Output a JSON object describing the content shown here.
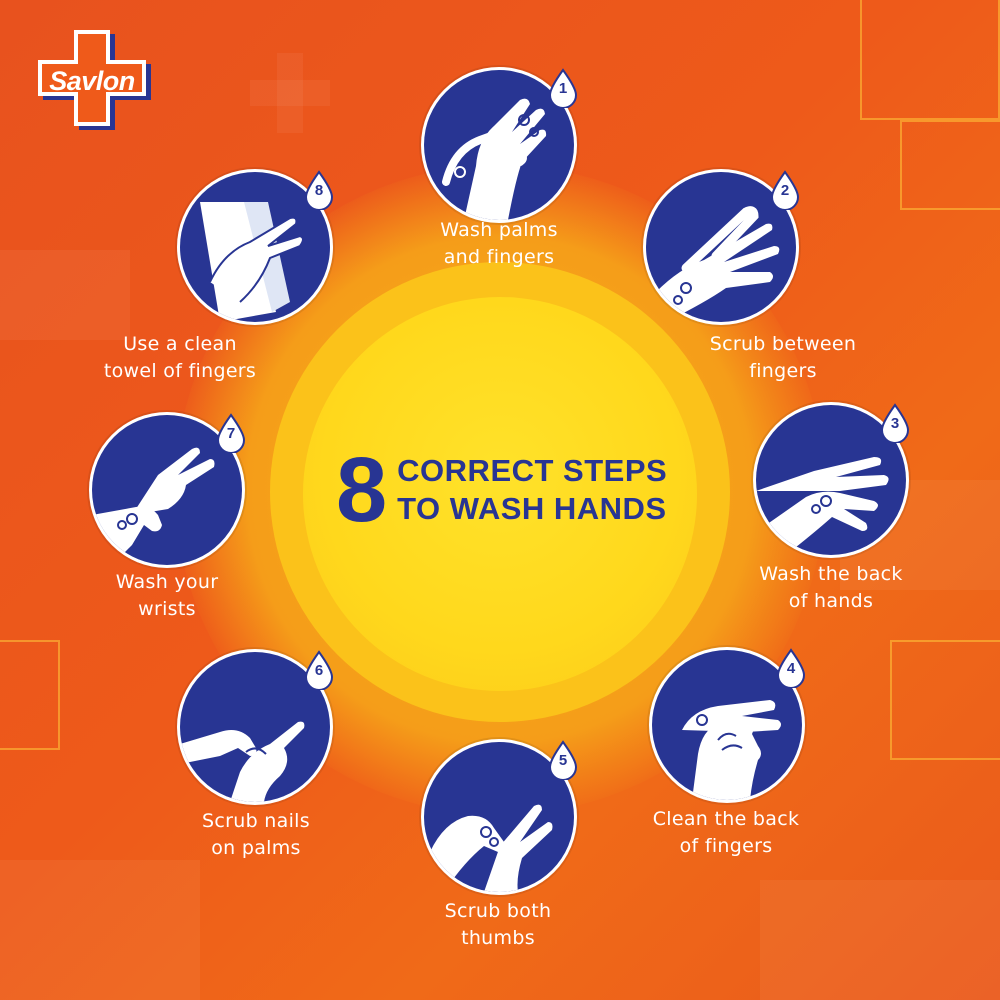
{
  "brand": {
    "name": "Savlon"
  },
  "headline": {
    "number": "8",
    "line1": "CORRECT STEPS",
    "line2": "TO WASH HANDS"
  },
  "colors": {
    "background": "#ee5a1a",
    "disc": "#283593",
    "sun": "#ffd81c",
    "headline_text": "#283593",
    "label_text": "#ffffff"
  },
  "steps": [
    {
      "number": "1",
      "label_line1": "Wash palms",
      "label_line2": "and fingers",
      "icon": "wash-palms-icon"
    },
    {
      "number": "2",
      "label_line1": "Scrub between",
      "label_line2": "fingers",
      "icon": "scrub-between-fingers-icon"
    },
    {
      "number": "3",
      "label_line1": "Wash the back",
      "label_line2": "of hands",
      "icon": "wash-back-of-hands-icon"
    },
    {
      "number": "4",
      "label_line1": "Clean the back",
      "label_line2": "of fingers",
      "icon": "clean-back-of-fingers-icon"
    },
    {
      "number": "5",
      "label_line1": "Scrub both",
      "label_line2": "thumbs",
      "icon": "scrub-thumbs-icon"
    },
    {
      "number": "6",
      "label_line1": "Scrub nails",
      "label_line2": "on palms",
      "icon": "scrub-nails-icon"
    },
    {
      "number": "7",
      "label_line1": "Wash your",
      "label_line2": "wrists",
      "icon": "wash-wrists-icon"
    },
    {
      "number": "8",
      "label_line1": "Use a clean",
      "label_line2": "towel of fingers",
      "icon": "clean-towel-icon"
    }
  ]
}
